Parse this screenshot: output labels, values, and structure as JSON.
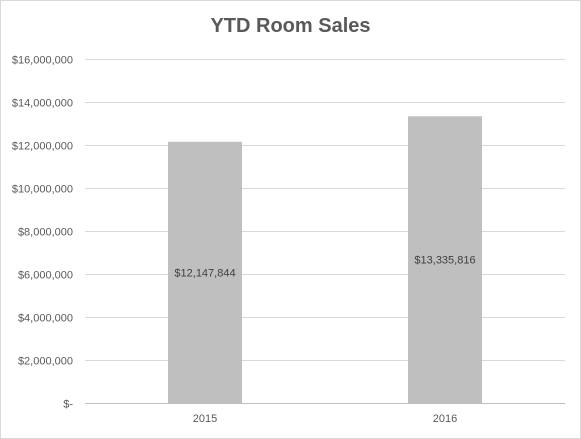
{
  "chart_data": {
    "type": "bar",
    "title": "YTD Room Sales",
    "categories": [
      "2015",
      "2016"
    ],
    "values": [
      12147844,
      13335816
    ],
    "data_labels": [
      "$12,147,844",
      "$13,335,816"
    ],
    "ylim": [
      0,
      16000000
    ],
    "y_ticks": [
      0,
      2000000,
      4000000,
      6000000,
      8000000,
      10000000,
      12000000,
      14000000,
      16000000
    ],
    "y_tick_labels": [
      "$-",
      "$2,000,000",
      "$4,000,000",
      "$6,000,000",
      "$8,000,000",
      "$10,000,000",
      "$12,000,000",
      "$14,000,000",
      "$16,000,000"
    ],
    "grid": true,
    "legend": "none",
    "bar_color": "#bfbfbf",
    "grid_color": "#d9d9d9",
    "axis_color": "#bfbfbf"
  }
}
